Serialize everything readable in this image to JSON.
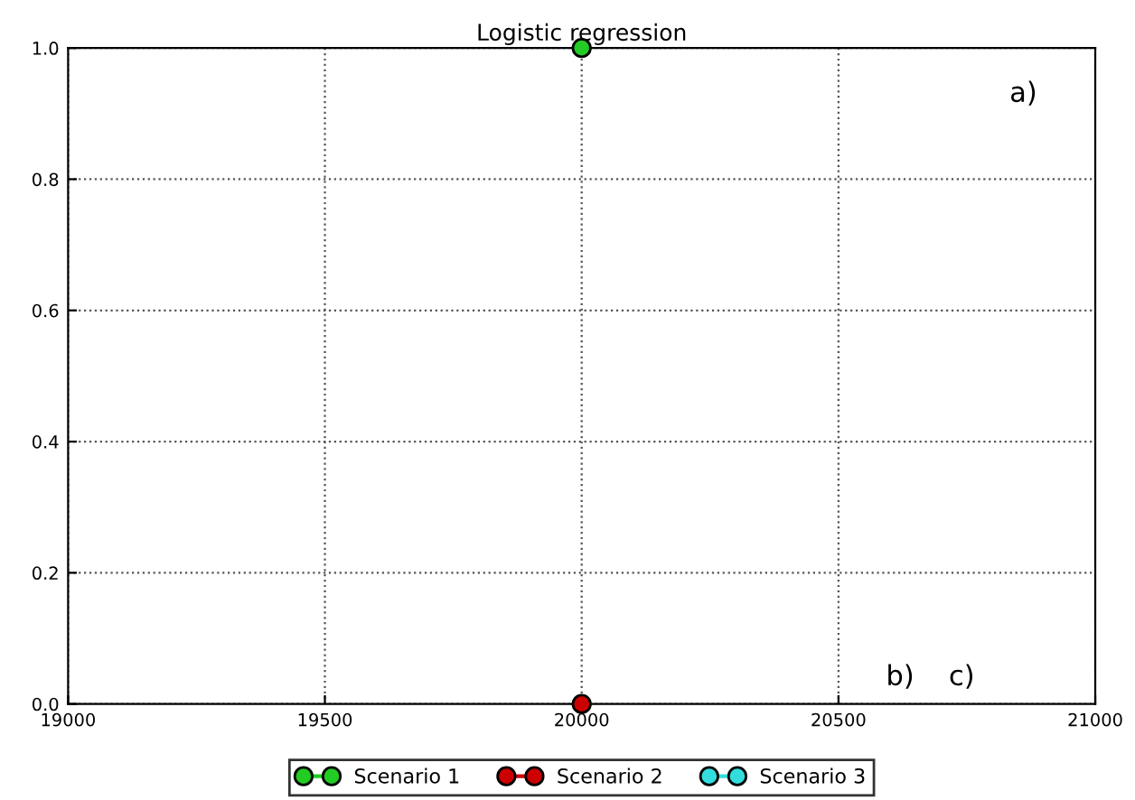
{
  "chart_data": {
    "type": "line",
    "title": "Logistic regression",
    "x": [
      20000
    ],
    "series": [
      {
        "name": "Scenario 1",
        "color": "#22cc22",
        "values": [
          1.0
        ]
      },
      {
        "name": "Scenario 2",
        "color": "#cc0000",
        "values": [
          0.0
        ]
      },
      {
        "name": "Scenario 3",
        "color": "#33dddd",
        "values": [
          null
        ]
      }
    ],
    "xlim": [
      19000,
      21000
    ],
    "xticks": [
      19000,
      19500,
      20000,
      20500,
      21000
    ],
    "ylim": [
      0,
      1
    ],
    "yticks": [
      {
        "value": 0,
        "label": "0.0"
      },
      {
        "value": 0.2,
        "label": "0.2"
      },
      {
        "value": 0.4,
        "label": "0.4"
      },
      {
        "value": 0.6,
        "label": "0.6"
      },
      {
        "value": 0.8,
        "label": "0.8"
      },
      {
        "value": 1,
        "label": "1.0"
      }
    ],
    "annotations": [
      "a)",
      "b)",
      "c)"
    ],
    "grid": true,
    "legend": "bottom",
    "marker": "circle",
    "line_style": "solid"
  }
}
